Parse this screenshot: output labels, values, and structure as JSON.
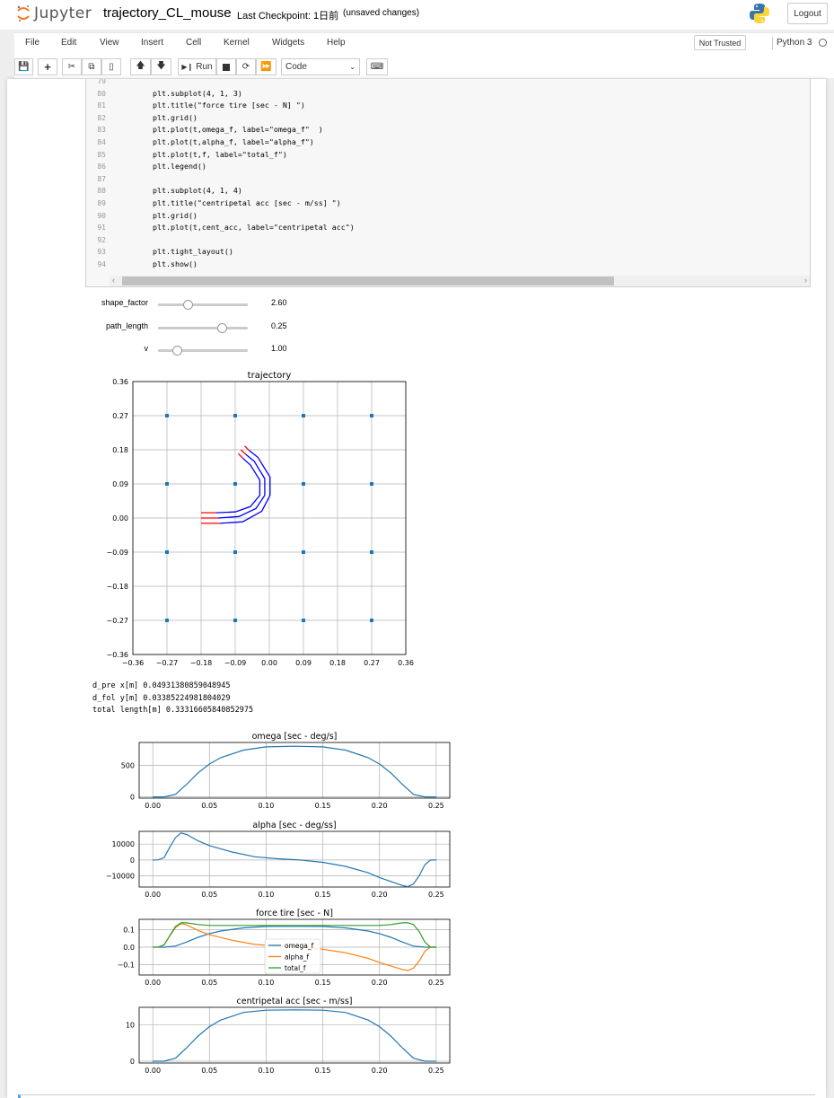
{
  "header": {
    "logo_text": "Jupyter",
    "notebook_name": "trajectory_CL_mouse",
    "checkpoint": "Last Checkpoint: 1日前",
    "unsaved": "(unsaved changes)",
    "logout_label": "Logout"
  },
  "menubar": {
    "items": [
      "File",
      "Edit",
      "View",
      "Insert",
      "Cell",
      "Kernel",
      "Widgets",
      "Help"
    ],
    "trust_label": "Not Trusted",
    "kernel_name": "Python 3"
  },
  "toolbar": {
    "run_label": "Run",
    "cell_type": "Code"
  },
  "code": {
    "lines": [
      {
        "n": "79",
        "t": ""
      },
      {
        "n": "80",
        "t": "    plt.subplot(4, 1, 3)"
      },
      {
        "n": "81",
        "t": "    plt.title(\"force tire [sec - N] \")"
      },
      {
        "n": "82",
        "t": "    plt.grid()"
      },
      {
        "n": "83",
        "t": "    plt.plot(t,omega_f, label=\"omega_f\"  )"
      },
      {
        "n": "84",
        "t": "    plt.plot(t,alpha_f, label=\"alpha_f\")"
      },
      {
        "n": "85",
        "t": "    plt.plot(t,f, label=\"total_f\")"
      },
      {
        "n": "86",
        "t": "    plt.legend()"
      },
      {
        "n": "87",
        "t": ""
      },
      {
        "n": "88",
        "t": "    plt.subplot(4, 1, 4)"
      },
      {
        "n": "89",
        "t": "    plt.title(\"centripetal acc [sec - m/ss] \")"
      },
      {
        "n": "90",
        "t": "    plt.grid()"
      },
      {
        "n": "91",
        "t": "    plt.plot(t,cent_acc, label=\"centripetal acc\")"
      },
      {
        "n": "92",
        "t": ""
      },
      {
        "n": "93",
        "t": "    plt.tight_layout()"
      },
      {
        "n": "94",
        "t": "    plt.show()"
      }
    ]
  },
  "widgets": [
    {
      "label": "shape_factor",
      "value": "2.60",
      "fraction": 0.33
    },
    {
      "label": "path_length",
      "value": "0.25",
      "fraction": 0.71
    },
    {
      "label": "v",
      "value": "1.00",
      "fraction": 0.21
    }
  ],
  "output_text": [
    "d_pre x[m] 0.04931380859048945",
    "d_fol y[m] 0.03385224981804029",
    "total length[m] 0.33316605840852975"
  ],
  "colors": {
    "blue": "#1f77b4",
    "orange": "#ff7f0e",
    "green": "#2ca02c",
    "traj_blue": "#0000ff",
    "traj_red": "#ff0000"
  },
  "chart_data": [
    {
      "type": "scatter",
      "title": "trajectory",
      "xlim": [
        -0.36,
        0.36
      ],
      "ylim": [
        -0.36,
        0.36
      ],
      "xticks": [
        "−0.36",
        "−0.27",
        "−0.18",
        "−0.09",
        "0.00",
        "0.09",
        "0.18",
        "0.27",
        "0.36"
      ],
      "yticks": [
        "0.36",
        "0.27",
        "0.18",
        "0.09",
        "0.00",
        "−0.09",
        "−0.18",
        "−0.27",
        "−0.36"
      ],
      "grid": true,
      "markers": {
        "x": [
          -0.27,
          -0.09,
          0.09,
          0.27
        ],
        "y": [
          0.27,
          0.09,
          -0.09,
          -0.27
        ]
      },
      "curves": [
        {
          "color": "red",
          "points": [
            [
              -0.18,
              0.014
            ],
            [
              -0.14,
              0.014
            ]
          ]
        },
        {
          "color": "blue",
          "points": [
            [
              -0.14,
              0.014
            ],
            [
              -0.09,
              0.016
            ],
            [
              -0.05,
              0.03
            ],
            [
              -0.025,
              0.06
            ],
            [
              -0.025,
              0.1
            ],
            [
              -0.05,
              0.14
            ],
            [
              -0.07,
              0.158
            ]
          ]
        },
        {
          "color": "red",
          "points": [
            [
              -0.07,
              0.158
            ],
            [
              -0.082,
              0.17
            ]
          ]
        },
        {
          "color": "red",
          "points": [
            [
              -0.18,
              0.0
            ],
            [
              -0.135,
              0.0
            ]
          ]
        },
        {
          "color": "blue",
          "points": [
            [
              -0.135,
              0.0
            ],
            [
              -0.08,
              0.004
            ],
            [
              -0.035,
              0.025
            ],
            [
              -0.012,
              0.06
            ],
            [
              -0.012,
              0.104
            ],
            [
              -0.04,
              0.15
            ],
            [
              -0.062,
              0.168
            ]
          ]
        },
        {
          "color": "red",
          "points": [
            [
              -0.062,
              0.168
            ],
            [
              -0.075,
              0.18
            ]
          ]
        },
        {
          "color": "red",
          "points": [
            [
              -0.18,
              -0.014
            ],
            [
              -0.13,
              -0.014
            ]
          ]
        },
        {
          "color": "blue",
          "points": [
            [
              -0.13,
              -0.014
            ],
            [
              -0.07,
              -0.01
            ],
            [
              -0.02,
              0.018
            ],
            [
              0.002,
              0.06
            ],
            [
              0.002,
              0.108
            ],
            [
              -0.03,
              0.16
            ],
            [
              -0.053,
              0.178
            ]
          ]
        },
        {
          "color": "red",
          "points": [
            [
              -0.053,
              0.178
            ],
            [
              -0.065,
              0.19
            ]
          ]
        }
      ]
    },
    {
      "type": "line",
      "title": "omega [sec - deg/s]",
      "xlim": [
        -0.012,
        0.262
      ],
      "ylim": [
        -20,
        860
      ],
      "xticks": [
        "0.00",
        "0.05",
        "0.10",
        "0.15",
        "0.20",
        "0.25"
      ],
      "yticks": [
        {
          "v": 0,
          "l": "0"
        },
        {
          "v": 500,
          "l": "500"
        }
      ],
      "grid": true,
      "series": [
        {
          "name": "",
          "color": "blue",
          "x": [
            0,
            0.01,
            0.02,
            0.03,
            0.04,
            0.05,
            0.06,
            0.08,
            0.1,
            0.125,
            0.15,
            0.17,
            0.19,
            0.2,
            0.21,
            0.22,
            0.23,
            0.24,
            0.25
          ],
          "y": [
            0,
            0,
            40,
            200,
            380,
            520,
            620,
            740,
            790,
            800,
            790,
            740,
            620,
            520,
            380,
            200,
            40,
            0,
            0
          ]
        }
      ]
    },
    {
      "type": "line",
      "title": "alpha [sec - deg/ss]",
      "xlim": [
        -0.012,
        0.262
      ],
      "ylim": [
        -17000,
        18000
      ],
      "xticks": [
        "0.00",
        "0.05",
        "0.10",
        "0.15",
        "0.20",
        "0.25"
      ],
      "yticks": [
        {
          "v": 10000,
          "l": "10000"
        },
        {
          "v": 0,
          "l": "0"
        },
        {
          "v": -10000,
          "l": "−10000"
        }
      ],
      "grid": true,
      "series": [
        {
          "name": "",
          "color": "blue",
          "x": [
            0,
            0.005,
            0.01,
            0.015,
            0.02,
            0.025,
            0.03,
            0.04,
            0.05,
            0.07,
            0.09,
            0.11,
            0.13,
            0.15,
            0.17,
            0.19,
            0.2,
            0.21,
            0.22,
            0.225,
            0.23,
            0.235,
            0.24,
            0.245,
            0.25
          ],
          "y": [
            0,
            100,
            1500,
            8000,
            14000,
            17000,
            16000,
            12000,
            9000,
            5000,
            2000,
            800,
            0,
            -1500,
            -4000,
            -8000,
            -11000,
            -13500,
            -16000,
            -16800,
            -15000,
            -10000,
            -3000,
            0,
            0
          ]
        }
      ]
    },
    {
      "type": "line",
      "title": "force tire [sec - N]",
      "xlim": [
        -0.012,
        0.262
      ],
      "ylim": [
        -0.16,
        0.16
      ],
      "xticks": [
        "0.00",
        "0.05",
        "0.10",
        "0.15",
        "0.20",
        "0.25"
      ],
      "yticks": [
        {
          "v": 0.1,
          "l": "0.1"
        },
        {
          "v": 0.0,
          "l": "0.0"
        },
        {
          "v": -0.1,
          "l": "−0.1"
        }
      ],
      "grid": true,
      "legend": "center",
      "series": [
        {
          "name": "omega_f",
          "color": "blue",
          "x": [
            0,
            0.01,
            0.02,
            0.03,
            0.04,
            0.05,
            0.06,
            0.08,
            0.1,
            0.125,
            0.15,
            0.17,
            0.19,
            0.2,
            0.21,
            0.22,
            0.23,
            0.24,
            0.25
          ],
          "y": [
            0,
            0,
            0.006,
            0.03,
            0.057,
            0.078,
            0.093,
            0.111,
            0.119,
            0.12,
            0.119,
            0.111,
            0.093,
            0.078,
            0.057,
            0.03,
            0.006,
            0,
            0
          ]
        },
        {
          "name": "alpha_f",
          "color": "orange",
          "x": [
            0,
            0.005,
            0.01,
            0.015,
            0.02,
            0.025,
            0.03,
            0.04,
            0.05,
            0.07,
            0.09,
            0.11,
            0.13,
            0.15,
            0.17,
            0.19,
            0.2,
            0.21,
            0.22,
            0.225,
            0.23,
            0.235,
            0.24,
            0.245,
            0.25
          ],
          "y": [
            0,
            0.001,
            0.012,
            0.064,
            0.112,
            0.136,
            0.128,
            0.096,
            0.072,
            0.04,
            0.016,
            0.006,
            0,
            -0.012,
            -0.032,
            -0.064,
            -0.088,
            -0.108,
            -0.128,
            -0.134,
            -0.12,
            -0.08,
            -0.024,
            0,
            0
          ]
        },
        {
          "name": "total_f",
          "color": "green",
          "x": [
            0,
            0.005,
            0.01,
            0.015,
            0.02,
            0.025,
            0.03,
            0.04,
            0.05,
            0.07,
            0.09,
            0.11,
            0.13,
            0.15,
            0.17,
            0.19,
            0.2,
            0.21,
            0.22,
            0.225,
            0.23,
            0.235,
            0.24,
            0.245,
            0.25
          ],
          "y": [
            0,
            0.001,
            0.014,
            0.066,
            0.118,
            0.14,
            0.14,
            0.13,
            0.125,
            0.125,
            0.125,
            0.125,
            0.125,
            0.125,
            0.125,
            0.125,
            0.125,
            0.13,
            0.14,
            0.14,
            0.13,
            0.09,
            0.03,
            0,
            0
          ]
        }
      ]
    },
    {
      "type": "line",
      "title": "centripetal acc [sec - m/ss]",
      "xlim": [
        -0.012,
        0.262
      ],
      "ylim": [
        -0.5,
        14.8
      ],
      "xticks": [
        "0.00",
        "0.05",
        "0.10",
        "0.15",
        "0.20",
        "0.25"
      ],
      "yticks": [
        {
          "v": 0,
          "l": "0"
        },
        {
          "v": 10,
          "l": "10"
        }
      ],
      "grid": true,
      "series": [
        {
          "name": "",
          "color": "blue",
          "x": [
            0,
            0.01,
            0.02,
            0.03,
            0.04,
            0.05,
            0.06,
            0.08,
            0.1,
            0.125,
            0.15,
            0.17,
            0.19,
            0.2,
            0.21,
            0.22,
            0.23,
            0.24,
            0.25
          ],
          "y": [
            0,
            0,
            0.8,
            3.7,
            6.9,
            9.5,
            11.3,
            13.4,
            14.0,
            14.1,
            14.0,
            13.4,
            11.3,
            9.5,
            6.9,
            3.7,
            0.8,
            0,
            0
          ]
        }
      ]
    }
  ]
}
